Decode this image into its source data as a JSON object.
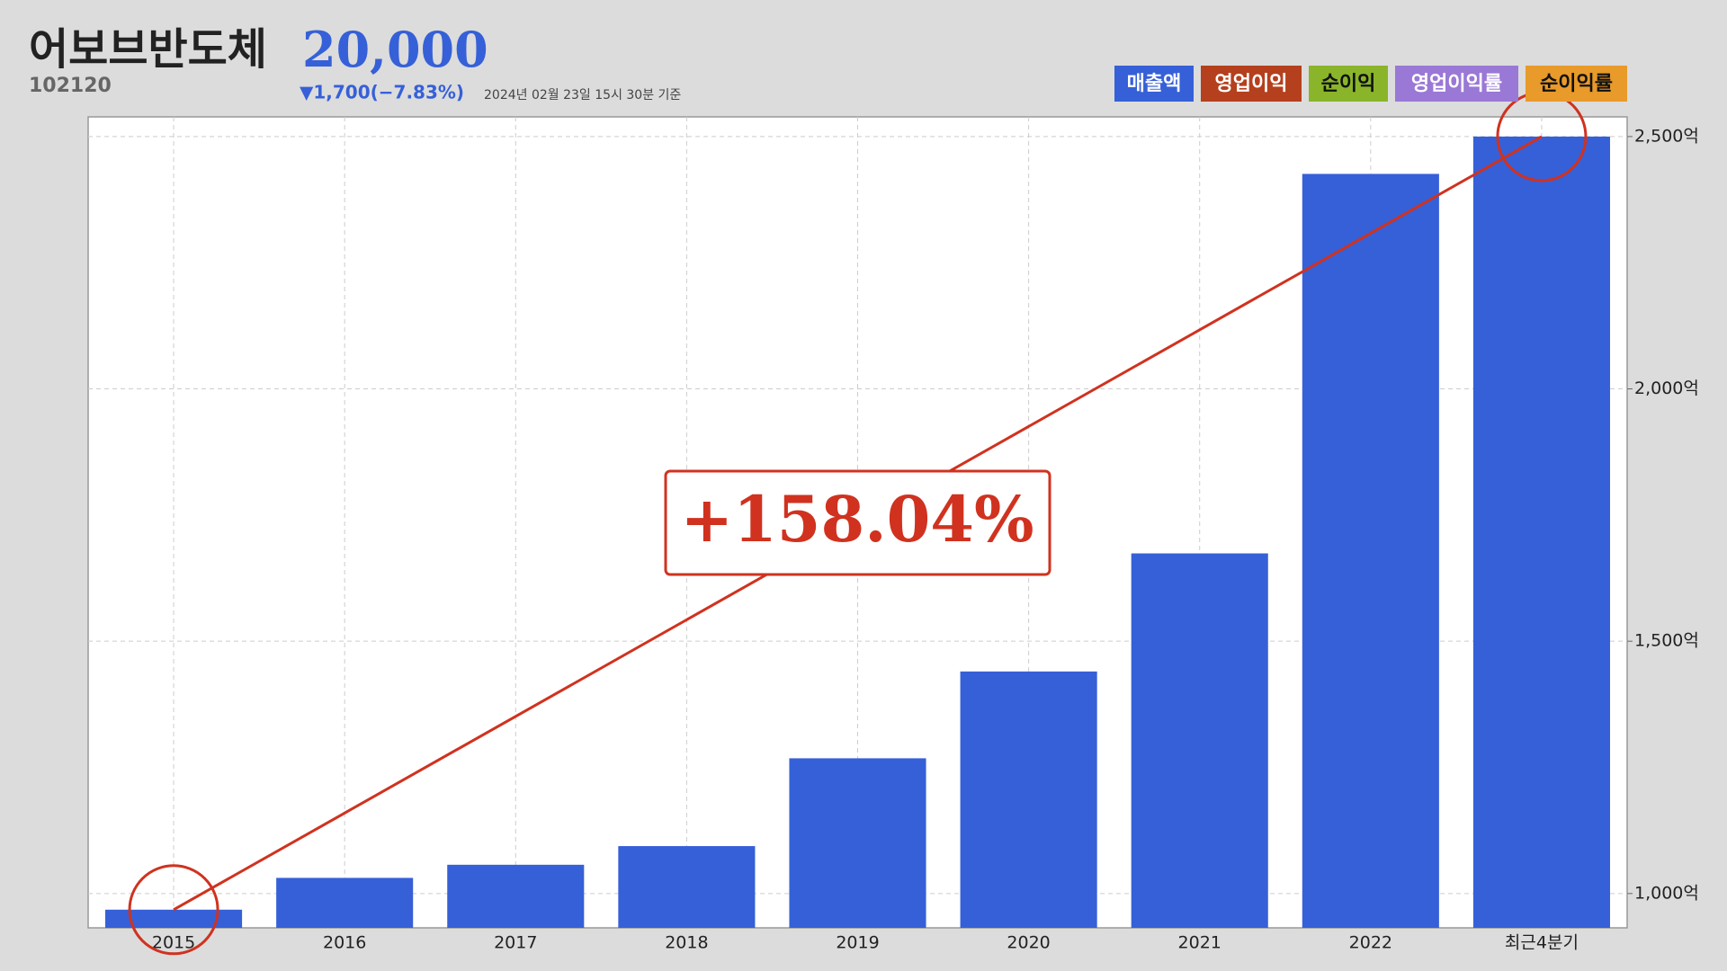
{
  "header": {
    "title": "어보브반도체",
    "price": "20,000",
    "code": "102120",
    "change": "▼1,700(−7.83%)",
    "timestamp": "2024년 02월 23일 15시 30분 기준"
  },
  "chart_data": {
    "type": "bar",
    "categories": [
      "2015",
      "2016",
      "2017",
      "2018",
      "2019",
      "2020",
      "2021",
      "2022",
      "최근4분기"
    ],
    "series": [
      {
        "name": "매출액",
        "color": "#3660d8",
        "values": [
          968,
          1031,
          1057,
          1094,
          1268,
          1440,
          1674,
          2426,
          2500
        ]
      }
    ],
    "legend_items": [
      {
        "name": "영업이익",
        "color": "#b5401d"
      },
      {
        "name": "순이익",
        "color": "#8ab52a"
      },
      {
        "name": "영업이익률",
        "color": "#9a78d6"
      },
      {
        "name": "순이익률",
        "color": "#e89a2a"
      }
    ],
    "ylim": [
      932,
      2539
    ],
    "yticks": [
      {
        "value": 1000,
        "label": "1,000억"
      },
      {
        "value": 1500,
        "label": "1,500억"
      },
      {
        "value": 2000,
        "label": "2,000억"
      },
      {
        "value": 2500,
        "label": "2,500억"
      }
    ],
    "grid": true,
    "annotation": "+158.04%"
  }
}
